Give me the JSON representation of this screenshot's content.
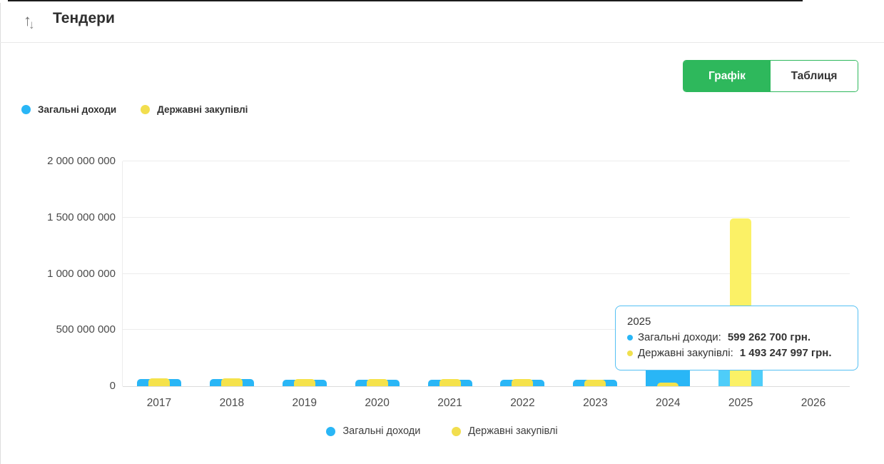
{
  "header": {
    "title": "Тендери",
    "sort_icon": "up-down-arrows"
  },
  "tabs": [
    {
      "label": "Графік",
      "active": true
    },
    {
      "label": "Таблиця",
      "active": false
    }
  ],
  "legend": {
    "items": [
      {
        "label": "Загальні доходи",
        "color": "#29b6f6"
      },
      {
        "label": "Державні закупівлі",
        "color": "#f2de4e"
      }
    ]
  },
  "tooltip": {
    "title": "2025",
    "rows": [
      {
        "label": "Загальні доходи:",
        "value": "599 262 700 грн.",
        "color": "#29b6f6"
      },
      {
        "label": "Державні закупівлі:",
        "value": "1 493 247 997 грн.",
        "color": "#f0e04e"
      }
    ]
  },
  "chart_data": {
    "type": "bar",
    "title": "Тендери",
    "xlabel": "",
    "ylabel": "",
    "categories": [
      "2017",
      "2018",
      "2019",
      "2020",
      "2021",
      "2022",
      "2023",
      "2024",
      "2025",
      "2026"
    ],
    "series": [
      {
        "name": "Загальні доходи",
        "color": "#29b6f6",
        "hover_color": "#4ecdf9",
        "values": [
          62000000,
          61000000,
          60000000,
          60000000,
          59000000,
          58000000,
          55000000,
          300000000,
          599262700,
          0
        ]
      },
      {
        "name": "Державні закупівлі",
        "color": "#f5e24b",
        "hover_color": "#fbf166",
        "values": [
          68000000,
          67000000,
          66000000,
          66000000,
          65000000,
          63000000,
          60000000,
          30000000,
          1493247997,
          0
        ]
      }
    ],
    "highlighted_category": "2025",
    "ylim": [
      0,
      2000000000
    ],
    "ytick_values": [
      0,
      500000000,
      1000000000,
      1500000000,
      2000000000
    ],
    "grid": true,
    "legend_positions": [
      "top-left",
      "bottom-center"
    ],
    "unit": "грн."
  }
}
